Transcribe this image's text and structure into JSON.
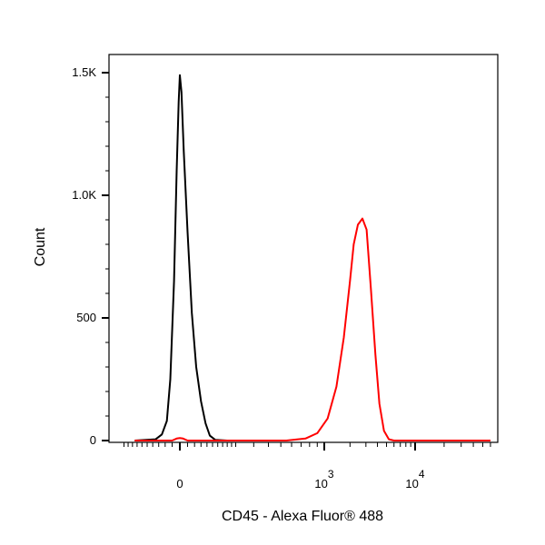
{
  "chart_data": {
    "type": "line",
    "title": "",
    "xlabel": "CD45 - Alexa Fluor® 488",
    "ylabel": "Count",
    "x_scale": "biexponential",
    "x_ticks": [
      {
        "value": 0,
        "label": "0",
        "exp": ""
      },
      {
        "value": 1000,
        "label": "10",
        "exp": "3"
      },
      {
        "value": 10000,
        "label": "10",
        "exp": "4"
      }
    ],
    "y_ticks": [
      {
        "value": 0,
        "label": "0"
      },
      {
        "value": 500,
        "label": "500"
      },
      {
        "value": 1000,
        "label": "1.0K"
      },
      {
        "value": 1500,
        "label": "1.5K"
      }
    ],
    "ylim": [
      0,
      1500
    ],
    "grid": false,
    "legend": "none",
    "series": [
      {
        "color": "#000000",
        "points": [
          [
            -150,
            0
          ],
          [
            -70,
            5
          ],
          [
            -50,
            25
          ],
          [
            -35,
            80
          ],
          [
            -25,
            250
          ],
          [
            -15,
            650
          ],
          [
            -8,
            1100
          ],
          [
            -3,
            1380
          ],
          [
            0,
            1490
          ],
          [
            4,
            1420
          ],
          [
            10,
            1180
          ],
          [
            20,
            850
          ],
          [
            32,
            520
          ],
          [
            45,
            300
          ],
          [
            60,
            160
          ],
          [
            75,
            70
          ],
          [
            90,
            20
          ],
          [
            110,
            3
          ],
          [
            160,
            0
          ]
        ]
      },
      {
        "color": "#ff0000",
        "points": [
          [
            -150,
            0
          ],
          [
            -20,
            0
          ],
          [
            -8,
            8
          ],
          [
            0,
            10
          ],
          [
            8,
            8
          ],
          [
            20,
            0
          ],
          [
            550,
            0
          ],
          [
            750,
            8
          ],
          [
            900,
            30
          ],
          [
            1100,
            90
          ],
          [
            1400,
            220
          ],
          [
            1700,
            420
          ],
          [
            2000,
            650
          ],
          [
            2200,
            800
          ],
          [
            2450,
            880
          ],
          [
            2750,
            905
          ],
          [
            3050,
            860
          ],
          [
            3400,
            620
          ],
          [
            3800,
            350
          ],
          [
            4200,
            150
          ],
          [
            4700,
            40
          ],
          [
            5300,
            5
          ],
          [
            6000,
            0
          ],
          [
            60000,
            0
          ]
        ]
      }
    ]
  }
}
